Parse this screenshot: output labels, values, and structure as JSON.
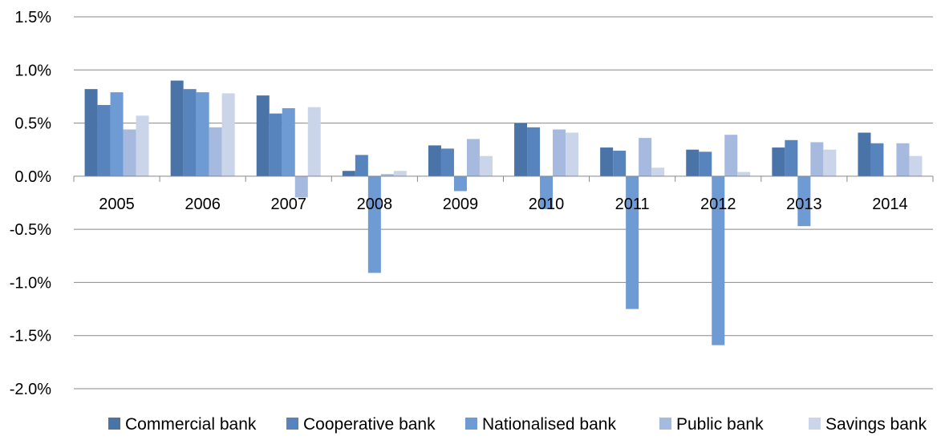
{
  "chart_data": {
    "type": "bar",
    "title": "",
    "xlabel": "",
    "ylabel": "",
    "ylim": [
      -2.0,
      1.5
    ],
    "yticks": [
      "1.5%",
      "1.0%",
      "0.5%",
      "0.0%",
      "-0.5%",
      "-1.0%",
      "-1.5%",
      "-2.0%"
    ],
    "ytick_values": [
      1.5,
      1.0,
      0.5,
      0.0,
      -0.5,
      -1.0,
      -1.5,
      -2.0
    ],
    "grid": true,
    "legend_position": "bottom",
    "categories": [
      "2005",
      "2006",
      "2007",
      "2008",
      "2009",
      "2010",
      "2011",
      "2012",
      "2013",
      "2014"
    ],
    "series": [
      {
        "name": "Commercial bank",
        "color": "#4a74a8",
        "values": [
          0.82,
          0.9,
          0.76,
          0.05,
          0.29,
          0.5,
          0.27,
          0.25,
          0.27,
          0.41
        ]
      },
      {
        "name": "Cooperative bank",
        "color": "#5784bd",
        "values": [
          0.67,
          0.82,
          0.59,
          0.2,
          0.26,
          0.46,
          0.24,
          0.23,
          0.34,
          0.31
        ]
      },
      {
        "name": "Nationalised bank",
        "color": "#6f9bd4",
        "values": [
          0.79,
          0.79,
          0.64,
          -0.91,
          -0.14,
          -0.31,
          -1.25,
          -1.59,
          -0.47,
          null
        ]
      },
      {
        "name": "Public bank",
        "color": "#a6b9de",
        "values": [
          0.44,
          0.46,
          -0.2,
          0.02,
          0.35,
          0.44,
          0.36,
          0.39,
          0.32,
          0.31
        ]
      },
      {
        "name": "Savings bank",
        "color": "#cbd5e9",
        "values": [
          0.57,
          0.78,
          0.65,
          0.05,
          0.19,
          0.41,
          0.08,
          0.04,
          0.25,
          0.19
        ]
      }
    ]
  }
}
